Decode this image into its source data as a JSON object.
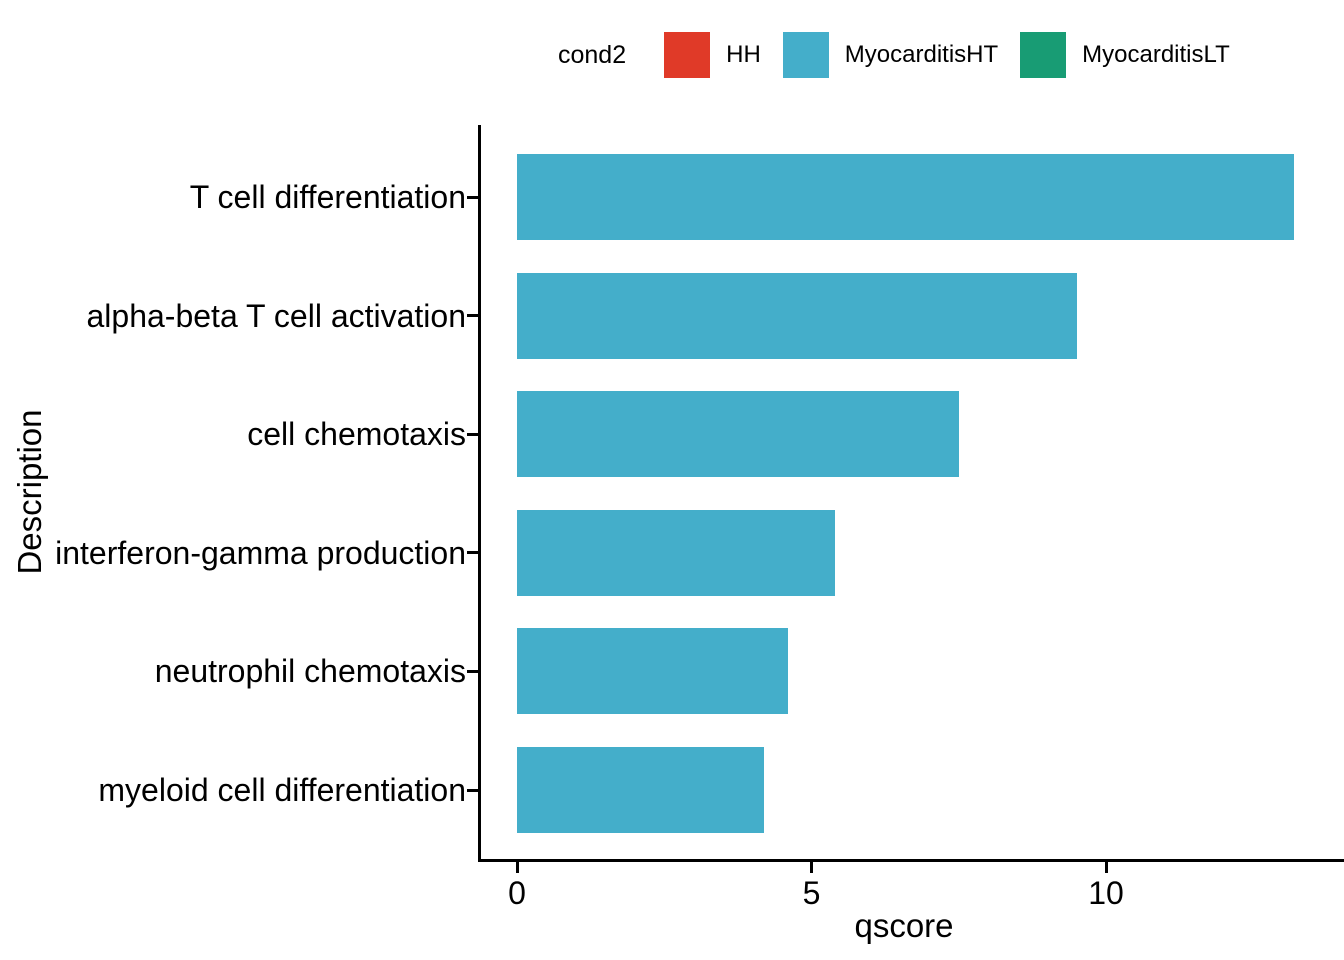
{
  "legend": {
    "title": "cond2",
    "items": [
      {
        "label": "HH",
        "color": "#e03a28"
      },
      {
        "label": "MyocarditisHT",
        "color": "#44aeca"
      },
      {
        "label": "MyocarditisLT",
        "color": "#189c74"
      }
    ]
  },
  "chart_data": {
    "type": "bar",
    "orientation": "horizontal",
    "title": "",
    "xlabel": "qscore",
    "ylabel": "Description",
    "categories": [
      "T cell differentiation",
      "alpha-beta T cell activation",
      "cell chemotaxis",
      "interferon-gamma production",
      "neutrophil chemotaxis",
      "myeloid cell differentiation"
    ],
    "series": [
      {
        "name": "MyocarditisHT",
        "values": [
          13.2,
          9.5,
          7.5,
          5.4,
          4.6,
          4.2
        ]
      }
    ],
    "bar_color": "#44aeca",
    "x_ticks": [
      0,
      5,
      10
    ],
    "xlim": [
      0,
      14
    ],
    "grid": false,
    "legend_position": "top"
  }
}
